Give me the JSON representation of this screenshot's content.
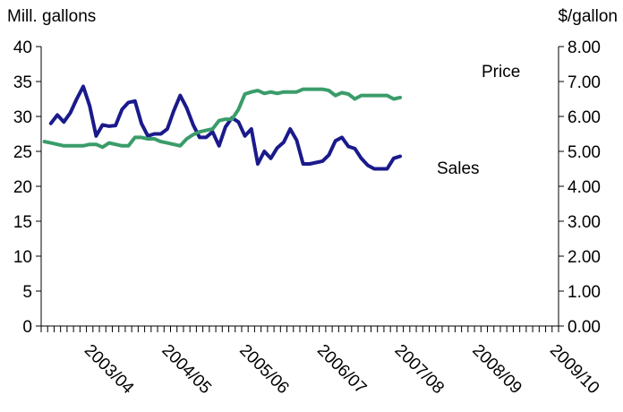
{
  "chart_data": {
    "type": "line",
    "title": "",
    "left_axis": {
      "unit_label": "Mill. gallons",
      "range": [
        0,
        40
      ],
      "ticks": [
        "0",
        "5",
        "10",
        "15",
        "20",
        "25",
        "30",
        "35",
        "40"
      ]
    },
    "right_axis": {
      "unit_label": "$/gallon",
      "range": [
        0,
        8
      ],
      "ticks": [
        "0.00",
        "1.00",
        "2.00",
        "3.00",
        "4.00",
        "5.00",
        "6.00",
        "7.00",
        "8.00"
      ]
    },
    "x_axis": {
      "labels": [
        "2003/04",
        "2004/05",
        "2005/06",
        "2006/07",
        "2007/08",
        "2008/09",
        "2009/10"
      ],
      "months_per_label": 12,
      "n_months": 80
    },
    "grid": false,
    "legend": "none",
    "series": [
      {
        "name": "Sales",
        "axis": "left",
        "color": "#1a1a8c",
        "x_start": 1,
        "values": [
          29.0,
          30.2,
          29.2,
          30.5,
          32.5,
          34.3,
          31.5,
          27.2,
          28.8,
          28.6,
          28.7,
          31.0,
          32.0,
          32.2,
          29.0,
          27.2,
          27.5,
          27.5,
          28.2,
          30.8,
          33.0,
          31.2,
          28.8,
          27.0,
          27.0,
          27.8,
          25.8,
          28.5,
          29.8,
          29.2,
          27.2,
          28.2,
          23.2,
          25.0,
          24.0,
          25.5,
          26.3,
          28.2,
          26.6,
          23.2,
          23.2,
          23.4,
          23.6,
          24.5,
          26.5,
          27.0,
          25.7,
          25.4,
          24.0,
          23.0,
          22.5,
          22.5,
          22.5,
          24.0,
          24.3
        ]
      },
      {
        "name": "Price",
        "axis": "right",
        "color": "#3a9c6a",
        "x_start": 0,
        "values": [
          5.28,
          5.24,
          5.2,
          5.16,
          5.16,
          5.16,
          5.16,
          5.2,
          5.2,
          5.12,
          5.24,
          5.2,
          5.16,
          5.16,
          5.4,
          5.4,
          5.36,
          5.36,
          5.28,
          5.24,
          5.2,
          5.16,
          5.36,
          5.48,
          5.56,
          5.6,
          5.64,
          5.88,
          5.92,
          5.92,
          6.2,
          6.64,
          6.7,
          6.74,
          6.66,
          6.7,
          6.66,
          6.7,
          6.7,
          6.7,
          6.78,
          6.78,
          6.78,
          6.78,
          6.74,
          6.6,
          6.68,
          6.64,
          6.5,
          6.6,
          6.6,
          6.6,
          6.6,
          6.6,
          6.5,
          6.54
        ]
      }
    ]
  }
}
